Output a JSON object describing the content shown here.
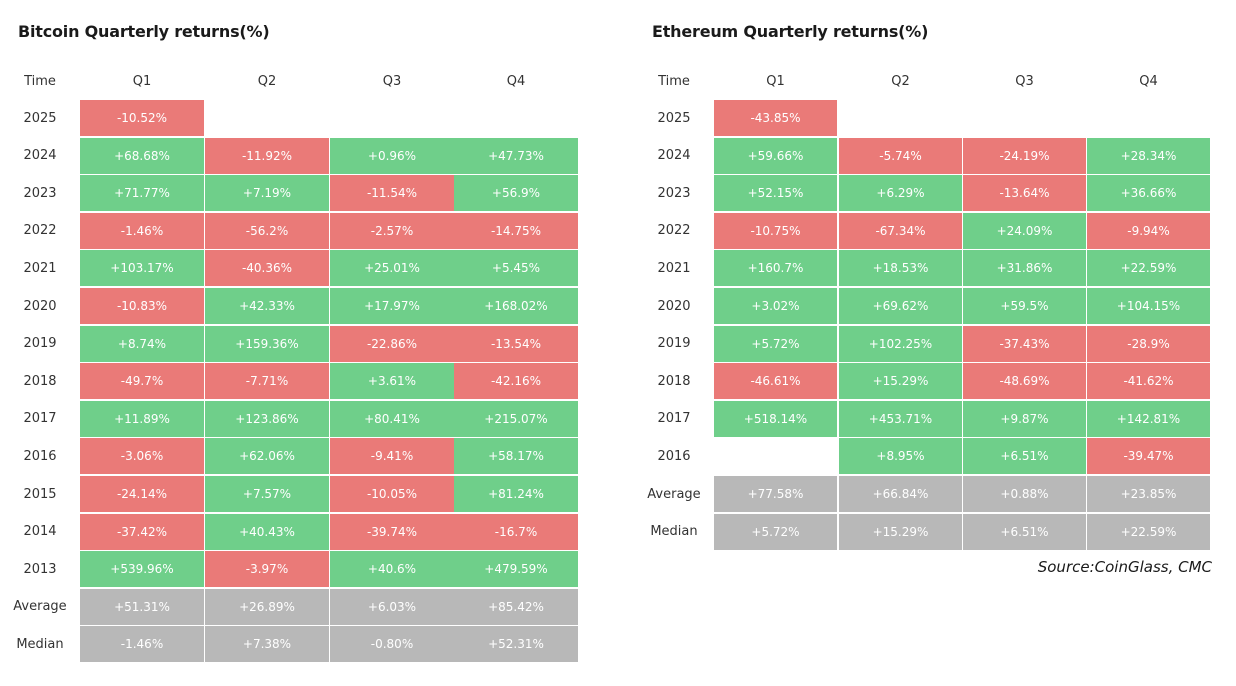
{
  "colors": {
    "positive": "#6fcf8a",
    "negative": "#ea7a78",
    "summary": "#b8b8b8",
    "empty": "#ffffff"
  },
  "source": "Source:CoinGlass, CMC",
  "chart_data": [
    {
      "type": "table",
      "title": "Bitcoin Quarterly returns(%)",
      "header": [
        "Time",
        "Q1",
        "Q2",
        "Q3",
        "Q4"
      ],
      "rows": [
        {
          "label": "2025",
          "cells": [
            "-10.52%",
            null,
            null,
            null
          ],
          "kind": "data"
        },
        {
          "label": "2024",
          "cells": [
            "+68.68%",
            "-11.92%",
            "+0.96%",
            "+47.73%"
          ],
          "kind": "data"
        },
        {
          "label": "2023",
          "cells": [
            "+71.77%",
            "+7.19%",
            "-11.54%",
            "+56.9%"
          ],
          "kind": "data"
        },
        {
          "label": "2022",
          "cells": [
            "-1.46%",
            "-56.2%",
            "-2.57%",
            "-14.75%"
          ],
          "kind": "data"
        },
        {
          "label": "2021",
          "cells": [
            "+103.17%",
            "-40.36%",
            "+25.01%",
            "+5.45%"
          ],
          "kind": "data"
        },
        {
          "label": "2020",
          "cells": [
            "-10.83%",
            "+42.33%",
            "+17.97%",
            "+168.02%"
          ],
          "kind": "data"
        },
        {
          "label": "2019",
          "cells": [
            "+8.74%",
            "+159.36%",
            "-22.86%",
            "-13.54%"
          ],
          "kind": "data"
        },
        {
          "label": "2018",
          "cells": [
            "-49.7%",
            "-7.71%",
            "+3.61%",
            "-42.16%"
          ],
          "kind": "data"
        },
        {
          "label": "2017",
          "cells": [
            "+11.89%",
            "+123.86%",
            "+80.41%",
            "+215.07%"
          ],
          "kind": "data"
        },
        {
          "label": "2016",
          "cells": [
            "-3.06%",
            "+62.06%",
            "-9.41%",
            "+58.17%"
          ],
          "kind": "data"
        },
        {
          "label": "2015",
          "cells": [
            "-24.14%",
            "+7.57%",
            "-10.05%",
            "+81.24%"
          ],
          "kind": "data"
        },
        {
          "label": "2014",
          "cells": [
            "-37.42%",
            "+40.43%",
            "-39.74%",
            "-16.7%"
          ],
          "kind": "data"
        },
        {
          "label": "2013",
          "cells": [
            "+539.96%",
            "-3.97%",
            "+40.6%",
            "+479.59%"
          ],
          "kind": "data"
        },
        {
          "label": "Average",
          "cells": [
            "+51.31%",
            "+26.89%",
            "+6.03%",
            "+85.42%"
          ],
          "kind": "summary"
        },
        {
          "label": "Median",
          "cells": [
            "-1.46%",
            "+7.38%",
            "-0.80%",
            "+52.31%"
          ],
          "kind": "summary"
        }
      ]
    },
    {
      "type": "table",
      "title": "Ethereum Quarterly returns(%)",
      "header": [
        "Time",
        "Q1",
        "Q2",
        "Q3",
        "Q4"
      ],
      "rows": [
        {
          "label": "2025",
          "cells": [
            "-43.85%",
            null,
            null,
            null
          ],
          "kind": "data"
        },
        {
          "label": "2024",
          "cells": [
            "+59.66%",
            "-5.74%",
            "-24.19%",
            "+28.34%"
          ],
          "kind": "data"
        },
        {
          "label": "2023",
          "cells": [
            "+52.15%",
            "+6.29%",
            "-13.64%",
            "+36.66%"
          ],
          "kind": "data"
        },
        {
          "label": "2022",
          "cells": [
            "-10.75%",
            "-67.34%",
            "+24.09%",
            "-9.94%"
          ],
          "kind": "data"
        },
        {
          "label": "2021",
          "cells": [
            "+160.7%",
            "+18.53%",
            "+31.86%",
            "+22.59%"
          ],
          "kind": "data"
        },
        {
          "label": "2020",
          "cells": [
            "+3.02%",
            "+69.62%",
            "+59.5%",
            "+104.15%"
          ],
          "kind": "data"
        },
        {
          "label": "2019",
          "cells": [
            "+5.72%",
            "+102.25%",
            "-37.43%",
            "-28.9%"
          ],
          "kind": "data"
        },
        {
          "label": "2018",
          "cells": [
            "-46.61%",
            "+15.29%",
            "-48.69%",
            "-41.62%"
          ],
          "kind": "data"
        },
        {
          "label": "2017",
          "cells": [
            "+518.14%",
            "+453.71%",
            "+9.87%",
            "+142.81%"
          ],
          "kind": "data"
        },
        {
          "label": "2016",
          "cells": [
            null,
            "+8.95%",
            "+6.51%",
            "-39.47%"
          ],
          "kind": "data"
        },
        {
          "label": "Average",
          "cells": [
            "+77.58%",
            "+66.84%",
            "+0.88%",
            "+23.85%"
          ],
          "kind": "summary"
        },
        {
          "label": "Median",
          "cells": [
            "+5.72%",
            "+15.29%",
            "+6.51%",
            "+22.59%"
          ],
          "kind": "summary"
        }
      ]
    }
  ]
}
